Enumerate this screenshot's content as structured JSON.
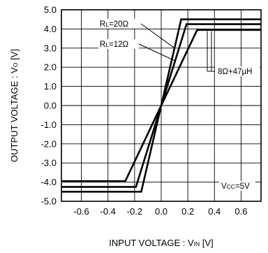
{
  "chart_data": {
    "type": "line",
    "xlabel": "INPUT VOLTAGE : VIN [V]",
    "ylabel": "OUTPUT VOLTAGE : VO [V]",
    "xlim": [
      -0.75,
      0.75
    ],
    "ylim": [
      -5.0,
      5.0
    ],
    "x_ticks": [
      "-0.6",
      "-0.4",
      "-0.2",
      "0.0",
      "0.2",
      "0.4",
      "0.6"
    ],
    "y_ticks": [
      "5.0",
      "4.0",
      "3.0",
      "2.0",
      "1.0",
      "0.0",
      "-1.0",
      "-2.0",
      "-3.0",
      "-4.0",
      "-5.0"
    ],
    "grid": true,
    "series": [
      {
        "name": "RL=20Ω",
        "x": [
          -0.75,
          -0.15,
          0.15,
          0.75
        ],
        "y": [
          -4.5,
          -4.5,
          4.5,
          4.5
        ]
      },
      {
        "name": "RL=12Ω",
        "x": [
          -0.75,
          -0.19,
          0.19,
          0.75
        ],
        "y": [
          -4.25,
          -4.25,
          4.25,
          4.25
        ]
      },
      {
        "name": "8Ω+47μH",
        "x": [
          -0.75,
          -0.27,
          0.27,
          0.75
        ],
        "y": [
          -3.95,
          -3.95,
          3.95,
          3.95
        ]
      }
    ],
    "annotations": [
      {
        "label_main": "R",
        "label_sub": "L",
        "label_rest": "=20Ω"
      },
      {
        "label_main": "R",
        "label_sub": "L",
        "label_rest": "=12Ω"
      },
      {
        "label_main": "8Ω+47μH",
        "label_sub": "",
        "label_rest": ""
      },
      {
        "label_main": "V",
        "label_sub": "CC",
        "label_rest": "=5V"
      }
    ],
    "xlabel_parts": {
      "main": "INPUT VOLTAGE : V",
      "sub": "IN",
      "rest": " [V]"
    },
    "ylabel_parts": {
      "main": "OUTPUT VOLTAGE : V",
      "sub": "O",
      "rest": " [V]"
    }
  }
}
